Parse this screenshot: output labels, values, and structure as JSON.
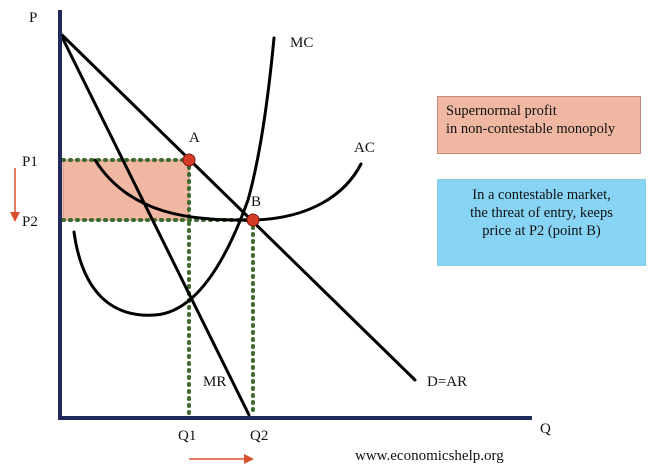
{
  "diagram": {
    "axis_labels": {
      "y": "P",
      "x": "Q"
    },
    "price_labels": {
      "p1": "P1",
      "p2": "P2"
    },
    "quantity_labels": {
      "q1": "Q1",
      "q2": "Q2"
    },
    "point_labels": {
      "a": "A",
      "b": "B"
    },
    "curve_labels": {
      "mc": "MC",
      "ac": "AC",
      "mr": "MR",
      "demand": "D=AR"
    },
    "notes": {
      "profit": {
        "line1": "Supernormal profit",
        "line2": "in non-contestable monopoly",
        "color": "#f0b8a3"
      },
      "contestable": {
        "line1": "In a contestable market,",
        "line2": "the threat of entry, keeps",
        "line3": "price at P2 (point B)",
        "color": "#88d4f5"
      }
    },
    "source": "www.economicshelp.org",
    "colors": {
      "axis": "#1f2a5a",
      "curves": "#000000",
      "guides": "#3d6b2e",
      "points": "#d63b28",
      "arrows": "#d9502e",
      "profit_area": "#f0b8a3"
    }
  }
}
